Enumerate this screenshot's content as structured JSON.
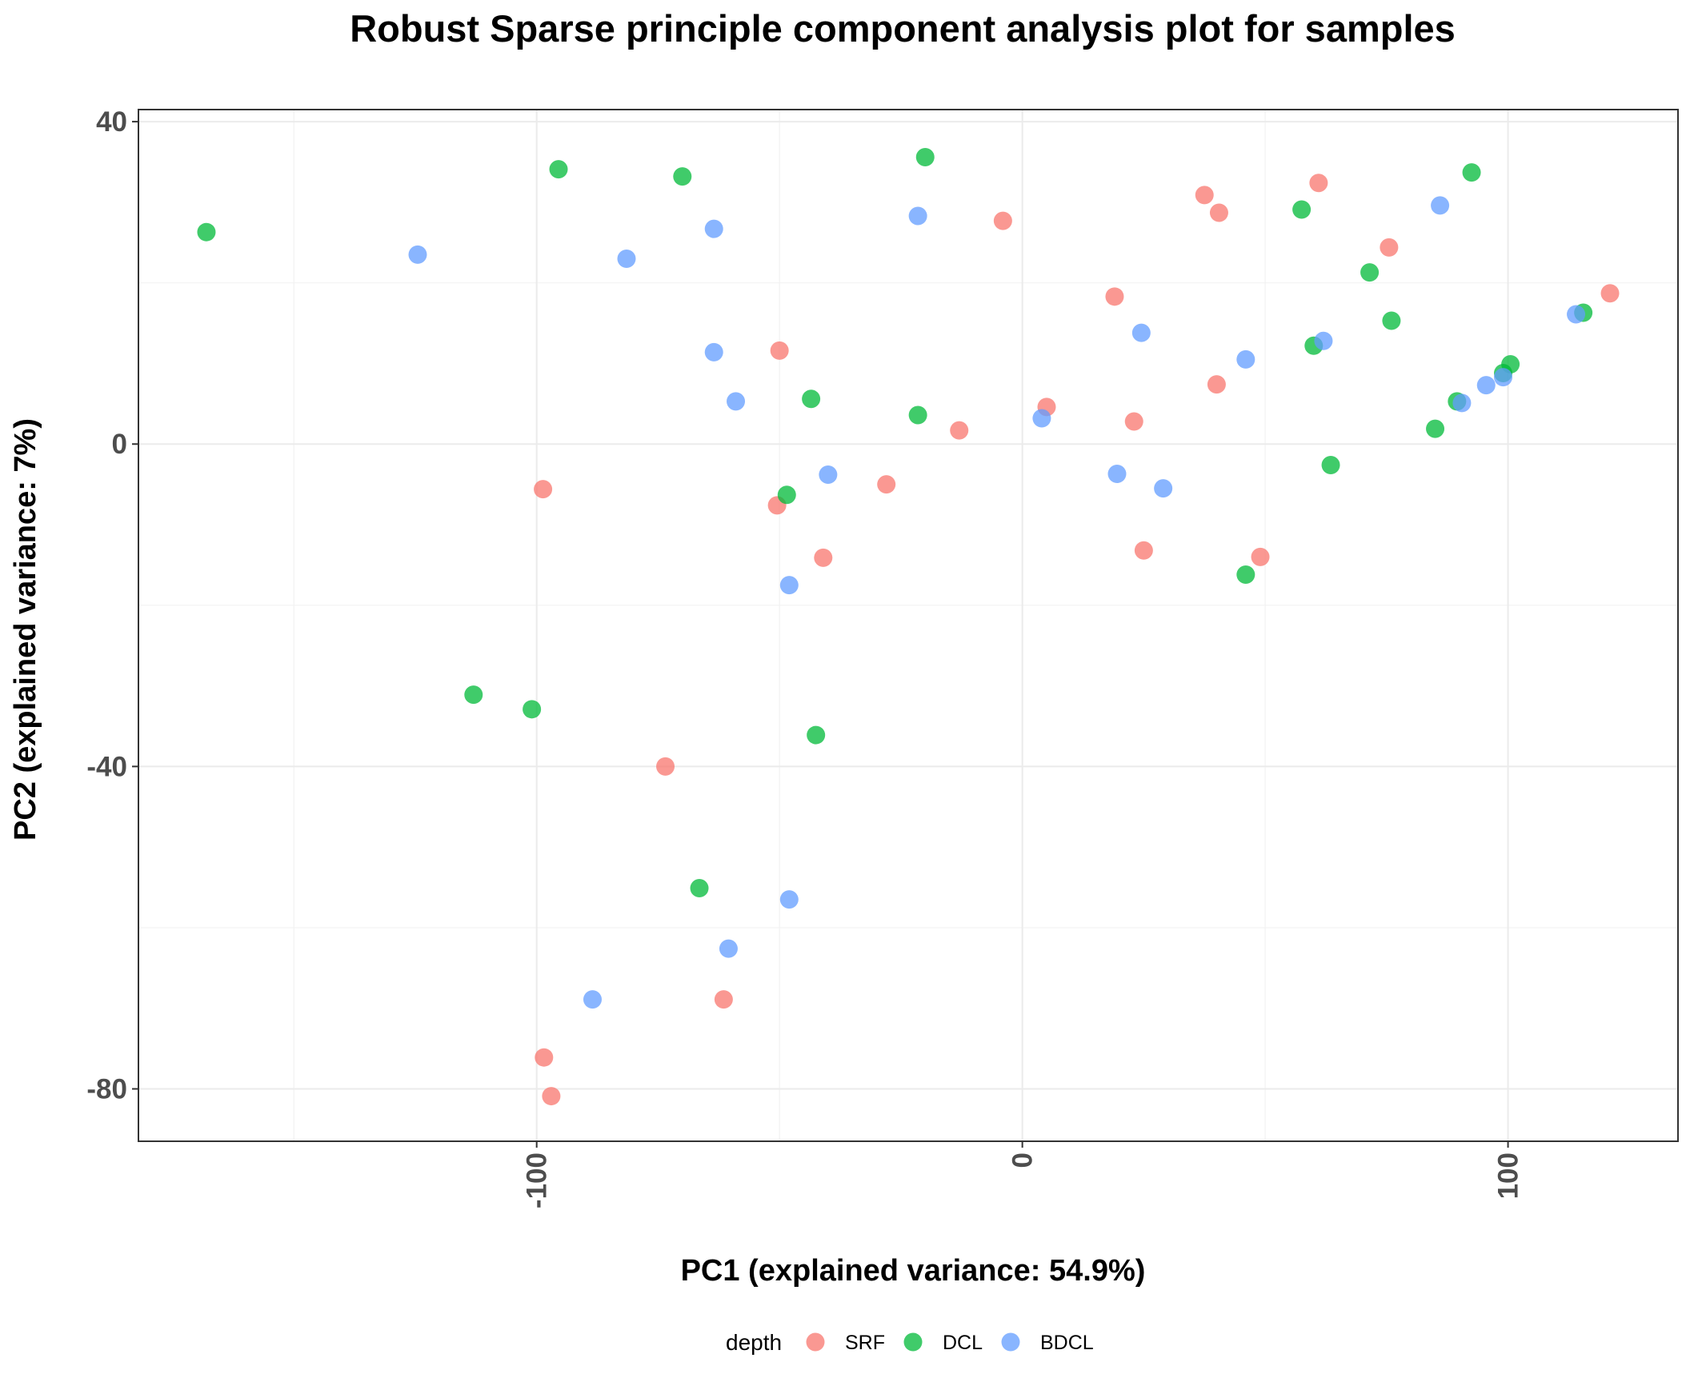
{
  "chart_data": {
    "type": "scatter",
    "title": "Robust Sparse principle component analysis plot for samples",
    "xlabel": "PC1 (explained variance: 54.9%)",
    "ylabel": "PC2 (explained variance: 7%)",
    "xlim": [
      -182,
      135
    ],
    "ylim": [
      -86.5,
      41.5
    ],
    "xticks": [
      -100,
      0,
      100
    ],
    "xtick_labels": [
      "-100",
      "0",
      "100"
    ],
    "yticks": [
      40,
      0,
      -40,
      -80
    ],
    "ytick_labels": [
      "40",
      "0",
      "-40",
      "-80"
    ],
    "grid": true,
    "legend": {
      "title": "depth",
      "position": "bottom"
    },
    "series": [
      {
        "name": "SRF",
        "color": "#F8766D",
        "points": [
          [
            -4,
            27.7
          ],
          [
            -50,
            11.6
          ],
          [
            -98.7,
            -5.6
          ],
          [
            -50.5,
            -7.6
          ],
          [
            -41,
            -14.1
          ],
          [
            -28,
            -5
          ],
          [
            -13,
            1.7
          ],
          [
            5,
            4.6
          ],
          [
            19,
            18.3
          ],
          [
            23,
            2.8
          ],
          [
            25,
            -13.2
          ],
          [
            37.5,
            30.9
          ],
          [
            40.5,
            28.7
          ],
          [
            40,
            7.4
          ],
          [
            49,
            -14
          ],
          [
            61,
            32.4
          ],
          [
            75.5,
            24.4
          ],
          [
            121,
            18.7
          ],
          [
            -73.5,
            -40
          ],
          [
            -61.5,
            -68.9
          ],
          [
            -98.5,
            -76.1
          ],
          [
            -97,
            -80.9
          ]
        ]
      },
      {
        "name": "DCL",
        "color": "#00BA38",
        "points": [
          [
            -168,
            26.3
          ],
          [
            -95.5,
            34.1
          ],
          [
            -70,
            33.2
          ],
          [
            -20,
            35.6
          ],
          [
            -43.5,
            5.6
          ],
          [
            -48.5,
            -6.3
          ],
          [
            -21.5,
            3.6
          ],
          [
            -113,
            -31.1
          ],
          [
            -101,
            -32.9
          ],
          [
            -42.5,
            -36.1
          ],
          [
            -66.5,
            -55.1
          ],
          [
            46,
            -16.2
          ],
          [
            57.5,
            29.1
          ],
          [
            60,
            12.2
          ],
          [
            71.5,
            21.3
          ],
          [
            76,
            15.3
          ],
          [
            63.5,
            -2.6
          ],
          [
            85,
            1.9
          ],
          [
            89.5,
            5.3
          ],
          [
            92.5,
            33.7
          ],
          [
            99,
            8.8
          ],
          [
            100.5,
            9.9
          ],
          [
            115.5,
            16.3
          ]
        ]
      },
      {
        "name": "BDCL",
        "color": "#619CFF",
        "points": [
          [
            -124.5,
            23.5
          ],
          [
            -81.5,
            23
          ],
          [
            -63.5,
            26.7
          ],
          [
            -63.5,
            11.4
          ],
          [
            -59,
            5.3
          ],
          [
            -21.5,
            28.3
          ],
          [
            -40,
            -3.8
          ],
          [
            -48,
            -17.5
          ],
          [
            4,
            3.2
          ],
          [
            19.5,
            -3.7
          ],
          [
            24.5,
            13.8
          ],
          [
            29,
            -5.5
          ],
          [
            46,
            10.5
          ],
          [
            62,
            12.8
          ],
          [
            86,
            29.6
          ],
          [
            90.5,
            5.1
          ],
          [
            95.5,
            7.3
          ],
          [
            99,
            8.3
          ],
          [
            114,
            16.1
          ],
          [
            -48,
            -56.5
          ],
          [
            -60.5,
            -62.6
          ],
          [
            -88.5,
            -68.9
          ]
        ]
      }
    ]
  }
}
